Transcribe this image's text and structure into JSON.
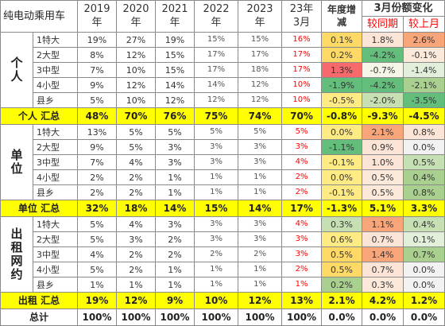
{
  "header": {
    "title": "纯电动乘用车",
    "years": [
      "2019\n年",
      "2020\n年",
      "2021\n年",
      "2022\n年",
      "2023\n年"
    ],
    "month_col": "23年\n3月",
    "annual_change": "年度增\n减",
    "march_change": "3月份额变化",
    "yoy": "较同期",
    "mom": "较上月"
  },
  "groups": [
    {
      "name": "个\n人",
      "rows": [
        {
          "cat": "1特大",
          "v": [
            "19%",
            "27%",
            "19%",
            "15%",
            "15%",
            "16%",
            "0.1%",
            "1.8%",
            "2.6%"
          ],
          "bg": [
            "#ffd966",
            "#fce4d6",
            "#f8a57a"
          ]
        },
        {
          "cat": "2大型",
          "v": [
            "8%",
            "12%",
            "15%",
            "17%",
            "17%",
            "17%",
            "0.2%",
            "-4.2%",
            "-0.1%"
          ],
          "bg": [
            "#ffd966",
            "#63be7b",
            "#fde9d9"
          ]
        },
        {
          "cat": "3中型",
          "v": [
            "7%",
            "10%",
            "15%",
            "17%",
            "18%",
            "17%",
            "1.3%",
            "-0.7%",
            "-1.4%"
          ],
          "bg": [
            "#f8696b",
            "#f5f5e8",
            "#e2efda"
          ]
        },
        {
          "cat": "4小型",
          "v": [
            "9%",
            "12%",
            "14%",
            "14%",
            "12%",
            "10%",
            "-1.9%",
            "-4.2%",
            "-2.1%"
          ],
          "bg": [
            "#63be7b",
            "#63be7b",
            "#a9d08e"
          ]
        },
        {
          "cat": "县乡",
          "v": [
            "5%",
            "10%",
            "12%",
            "12%",
            "12%",
            "10%",
            "-0.5%",
            "-2.0%",
            "-3.5%"
          ],
          "bg": [
            "#ffeb84",
            "#c6e0b4",
            "#63be7b"
          ]
        }
      ],
      "subtotal": {
        "label": "个人 汇总",
        "v": [
          "48%",
          "70%",
          "76%",
          "75%",
          "74%",
          "70%",
          "-0.8%",
          "-9.3%",
          "-4.5%"
        ]
      }
    },
    {
      "name": "单\n位",
      "rows": [
        {
          "cat": "1特大",
          "v": [
            "13%",
            "5%",
            "5%",
            "5%",
            "5%",
            "5%",
            "0.0%",
            "2.1%",
            "0.8%"
          ],
          "bg": [
            "#ffeb84",
            "#f8a57a",
            "#fce4d6"
          ]
        },
        {
          "cat": "2大型",
          "v": [
            "9%",
            "5%",
            "3%",
            "3%",
            "3%",
            "3%",
            "-1.1%",
            "0.9%",
            "0.0%"
          ],
          "bg": [
            "#63be7b",
            "#fce4d6",
            "#f2f2f2"
          ]
        },
        {
          "cat": "3中型",
          "v": [
            "7%",
            "4%",
            "3%",
            "3%",
            "3%",
            "4%",
            "-0.1%",
            "1.0%",
            "0.5%"
          ],
          "bg": [
            "#ffeb84",
            "#fce4d6",
            "#c6e0b4"
          ]
        },
        {
          "cat": "4小型",
          "v": [
            "2%",
            "2%",
            "1%",
            "1%",
            "1%",
            "2%",
            "0.0%",
            "0.5%",
            "0.4%"
          ],
          "bg": [
            "#ffeb84",
            "#fde9d9",
            "#a9d08e"
          ]
        },
        {
          "cat": "县乡",
          "v": [
            "2%",
            "2%",
            "1%",
            "1%",
            "1%",
            "2%",
            "-0.1%",
            "0.5%",
            "0.8%"
          ],
          "bg": [
            "#ffeb84",
            "#fde9d9",
            "#a9d08e"
          ]
        }
      ],
      "subtotal": {
        "label": "单位 汇总",
        "v": [
          "32%",
          "18%",
          "14%",
          "15%",
          "14%",
          "17%",
          "-1.3%",
          "5.1%",
          "3.3%"
        ]
      }
    },
    {
      "name": "出\n租\n网\n约",
      "rows": [
        {
          "cat": "1特大",
          "v": [
            "5%",
            "4%",
            "3%",
            "3%",
            "3%",
            "4%",
            "0.3%",
            "1.1%",
            "0.4%"
          ],
          "bg": [
            "#c6e0b4",
            "#f8a57a",
            "#c6e0b4"
          ]
        },
        {
          "cat": "2大型",
          "v": [
            "5%",
            "3%",
            "2%",
            "3%",
            "3%",
            "3%",
            "0.6%",
            "0.7%",
            "0.1%"
          ],
          "bg": [
            "#ffeb84",
            "#fce4d6",
            "#e2efda"
          ]
        },
        {
          "cat": "3中型",
          "v": [
            "4%",
            "2%",
            "2%",
            "2%",
            "2%",
            "3%",
            "0.5%",
            "1.4%",
            "0.7%"
          ],
          "bg": [
            "#ffd966",
            "#f8a57a",
            "#a9d08e"
          ]
        },
        {
          "cat": "4小型",
          "v": [
            "5%",
            "2%",
            "1%",
            "1%",
            "1%",
            "2%",
            "0.5%",
            "0.7%",
            "0.0%"
          ],
          "bg": [
            "#ffd966",
            "#fce4d6",
            "#f2f2f2"
          ]
        },
        {
          "cat": "县乡",
          "v": [
            "1%",
            "1%",
            "1%",
            "1%",
            "1%",
            "1%",
            "0.2%",
            "0.3%",
            "0.0%"
          ],
          "bg": [
            "#a9d08e",
            "#fde9d9",
            "#f2f2f2"
          ]
        }
      ],
      "subtotal": {
        "label": "出租 汇总",
        "v": [
          "19%",
          "12%",
          "9%",
          "10%",
          "12%",
          "13%",
          "2.1%",
          "4.2%",
          "1.2%"
        ]
      }
    }
  ],
  "total": {
    "label": "总计",
    "v": [
      "100%",
      "100%",
      "100%",
      "100%",
      "100%",
      "100%",
      "0.0%",
      "0.0%",
      "0.0%"
    ]
  }
}
